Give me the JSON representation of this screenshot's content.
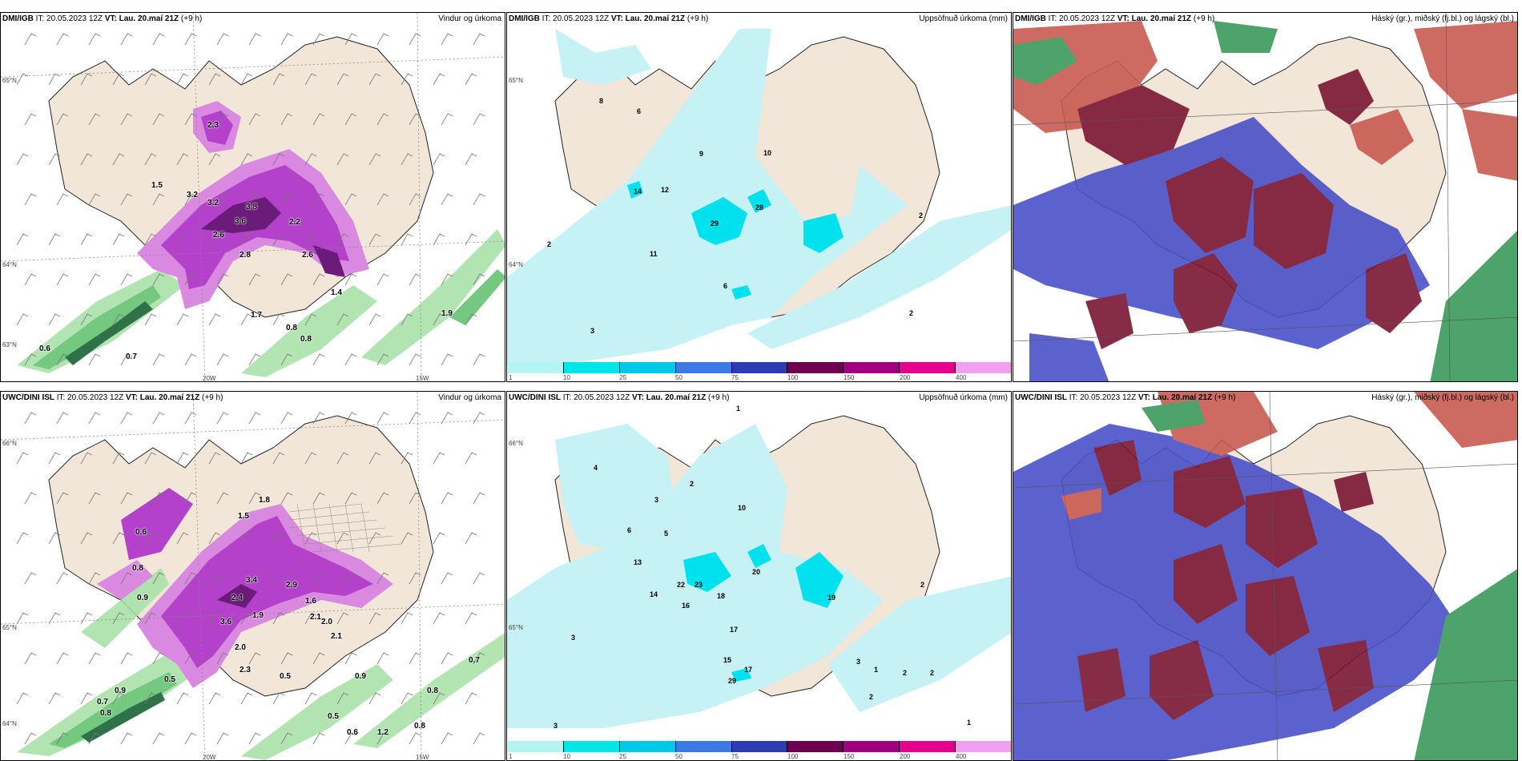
{
  "panels": [
    {
      "id": "top-left",
      "model": "DMI/IGB",
      "it": "IT: 20.05.2023 12Z",
      "vt": "VT: Lau. 20.maí 21Z",
      "lead": "(+9 h)",
      "title": "Vindur og úrkoma",
      "axis": {
        "lat1": "65°N",
        "lat2": "64°N",
        "lat3": "63°N",
        "lon1": "20W",
        "lon2": "15W"
      },
      "labels": [
        "2.3",
        "3.2",
        "3.2",
        "3.8",
        "3.6",
        "2.6",
        "2.8",
        "2.2",
        "2.6",
        "1.4",
        "0.8",
        "0.8",
        "0.7",
        "0.6",
        "1.7",
        "1.5",
        "1.9"
      ]
    },
    {
      "id": "top-middle",
      "model": "DMI/IGB",
      "it": "IT: 20.05.2023 12Z",
      "vt": "VT: Lau. 20.maí 21Z",
      "lead": "(+9 h)",
      "title": "Uppsöfnuð úrkoma (mm)",
      "axis": {
        "lat1": "65°N",
        "lat2": "64°N"
      },
      "labels": [
        "8",
        "6",
        "9",
        "10",
        "14",
        "12",
        "29",
        "28",
        "2",
        "11",
        "2",
        "3",
        "2",
        "6"
      ]
    },
    {
      "id": "top-right",
      "model": "DMI/IGB",
      "it": "IT: 20.05.2023 12Z",
      "vt": "VT: Lau. 20.maí 21Z",
      "lead": "(+9 h)",
      "title": "Háský (gr.), miðský (fj.bl.) og lágský (bl.)"
    },
    {
      "id": "bottom-left",
      "model": "UWC/DINI ISL",
      "it": "IT: 20.05.2023 12Z",
      "vt": "VT: Lau. 20.maí 21Z",
      "lead": "(+9 h)",
      "title": "Vindur og úrkoma",
      "axis": {
        "lat1": "66°N",
        "lat2": "65°N",
        "lat3": "64°N",
        "lon1": "20W",
        "lon2": "15W"
      },
      "labels": [
        "0.6",
        "0.8",
        "0.9",
        "1.8",
        "1.5",
        "3.4",
        "2.4",
        "3.6",
        "2.9",
        "1.6",
        "2.1",
        "2.0",
        "2.1",
        "1.9",
        "2.0",
        "2.3",
        "0.5",
        "0.9",
        "0.7",
        "0.8",
        "0.6",
        "0.5",
        "0.8",
        "0.7",
        "0.8",
        "0.9",
        "0.5",
        "1.2"
      ]
    },
    {
      "id": "bottom-middle",
      "model": "UWC/DINI ISL",
      "it": "IT: 20.05.2023 12Z",
      "vt": "VT: Lau. 20.maí 21Z",
      "lead": "(+9 h)",
      "title": "Uppsöfnuð úrkoma (mm)",
      "axis": {
        "lat1": "66°N",
        "lat2": "65°N"
      },
      "labels": [
        "1",
        "4",
        "3",
        "2",
        "10",
        "5",
        "6",
        "13",
        "20",
        "23",
        "22",
        "16",
        "18",
        "17",
        "19",
        "14",
        "15",
        "17",
        "29",
        "2",
        "3",
        "1",
        "2",
        "2",
        "2",
        "1",
        "3",
        "3"
      ]
    },
    {
      "id": "bottom-right",
      "model": "UWC/DINI ISL",
      "it": "IT: 20.05.2023 12Z",
      "vt": "VT: Lau. 20.maí 21Z",
      "lead": "(+9 h)",
      "title": "Háský (gr.), miðský (fj.bl.) og lágský (bl.)"
    }
  ],
  "colorbar": {
    "ticks": [
      "1",
      "10",
      "25",
      "50",
      "75",
      "100",
      "150",
      "200",
      "400"
    ],
    "colors": [
      "#b3f4f4",
      "#00e6e6",
      "#00c8e6",
      "#3c78e6",
      "#2c3cb4",
      "#6e0050",
      "#a0007f",
      "#e6008c",
      "#f0a0f0"
    ]
  },
  "map_colors": {
    "land": "#f2e6d9",
    "sea": "#ffffff",
    "precip_light": "#c6f2f5",
    "precip_mid": "#00e1ee",
    "wind_green": "#5cbf6a",
    "wind_dark": "#0b5a2a",
    "rain_purple": "#b341c9",
    "rain_dark": "#6b1b7a",
    "high_cloud_green": "#3a9a5a",
    "mid_cloud_maroon": "#7b1633",
    "low_cloud_blue": "#4a50c8",
    "red_cloud": "#b8463e"
  }
}
